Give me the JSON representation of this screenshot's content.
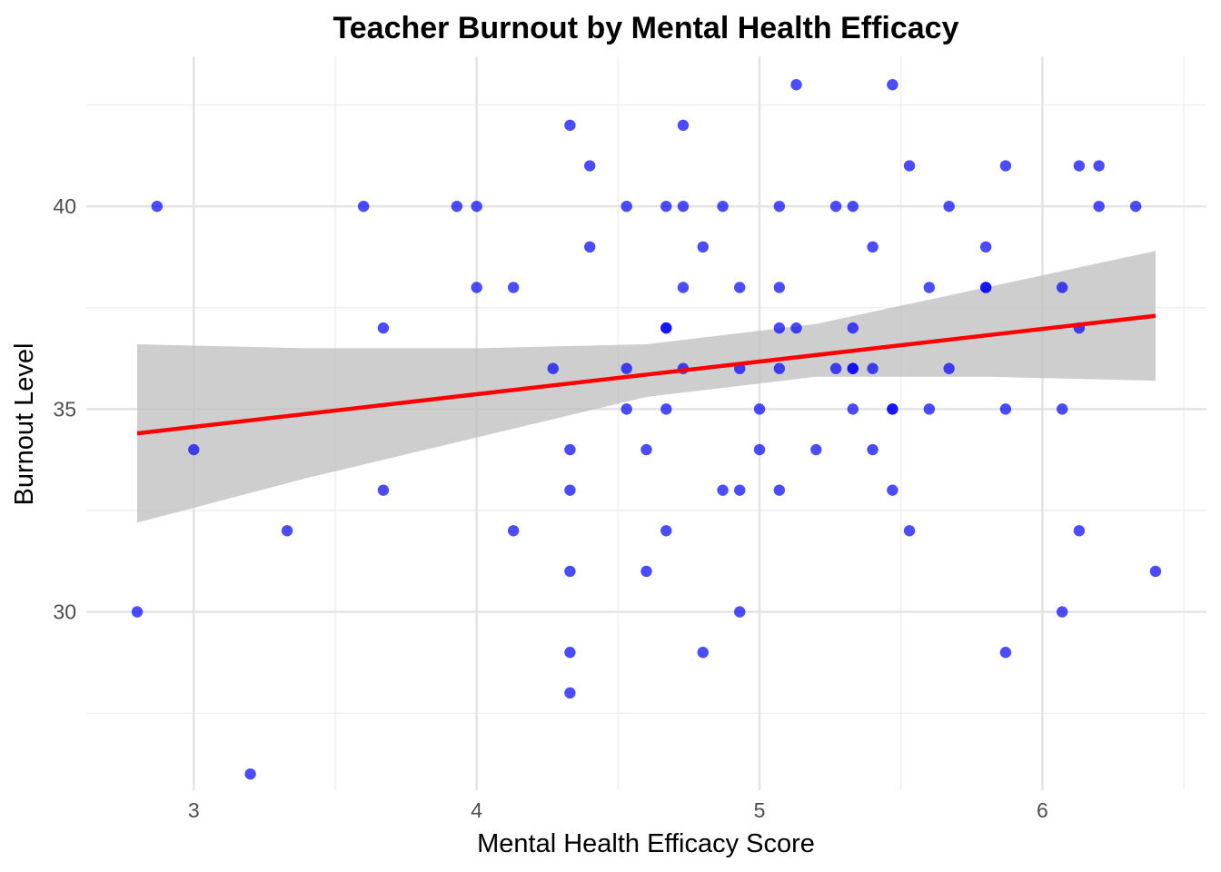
{
  "chart_data": {
    "type": "scatter",
    "title": "Teacher Burnout by Mental Health Efficacy",
    "xlabel": "Mental Health Efficacy Score",
    "ylabel": "Burnout Level",
    "xlim": [
      2.62,
      6.58
    ],
    "ylim": [
      25.6,
      43.7
    ],
    "x_ticks": [
      3,
      4,
      5,
      6
    ],
    "x_tick_labels": [
      "3",
      "4",
      "5",
      "6"
    ],
    "x_minor_ticks": [
      3.5,
      4.5,
      5.5,
      6.5
    ],
    "y_ticks": [
      30,
      35,
      40
    ],
    "y_tick_labels": [
      "30",
      "35",
      "40"
    ],
    "y_minor_ticks": [
      27.5,
      32.5,
      37.5,
      42.5
    ],
    "grid": true,
    "legend": "none",
    "point_color": "#0000ff",
    "point_opacity": 0.7,
    "trend_color": "#ff0000",
    "band_color": "#bebebe",
    "trend": {
      "method": "linear",
      "x": [
        2.8,
        6.4
      ],
      "y": [
        34.4,
        37.3
      ]
    },
    "confidence_band": {
      "x": [
        2.8,
        3.4,
        4.0,
        4.6,
        5.2,
        5.8,
        6.4
      ],
      "lower": [
        32.2,
        33.3,
        34.3,
        35.3,
        35.8,
        35.8,
        35.7
      ],
      "upper": [
        36.6,
        36.5,
        36.5,
        36.6,
        37.1,
        38.0,
        38.9
      ]
    },
    "points": [
      {
        "x": 2.8,
        "y": 30
      },
      {
        "x": 2.87,
        "y": 40
      },
      {
        "x": 3.0,
        "y": 34
      },
      {
        "x": 3.2,
        "y": 26
      },
      {
        "x": 3.33,
        "y": 32
      },
      {
        "x": 3.6,
        "y": 40
      },
      {
        "x": 3.67,
        "y": 37
      },
      {
        "x": 3.67,
        "y": 33
      },
      {
        "x": 3.93,
        "y": 40
      },
      {
        "x": 4.0,
        "y": 40
      },
      {
        "x": 4.0,
        "y": 38
      },
      {
        "x": 4.13,
        "y": 38
      },
      {
        "x": 4.13,
        "y": 32
      },
      {
        "x": 4.27,
        "y": 36
      },
      {
        "x": 4.33,
        "y": 42
      },
      {
        "x": 4.33,
        "y": 34
      },
      {
        "x": 4.33,
        "y": 33
      },
      {
        "x": 4.33,
        "y": 31
      },
      {
        "x": 4.33,
        "y": 29
      },
      {
        "x": 4.33,
        "y": 28
      },
      {
        "x": 4.4,
        "y": 41
      },
      {
        "x": 4.4,
        "y": 39
      },
      {
        "x": 4.53,
        "y": 40
      },
      {
        "x": 4.53,
        "y": 36
      },
      {
        "x": 4.53,
        "y": 35
      },
      {
        "x": 4.6,
        "y": 34
      },
      {
        "x": 4.6,
        "y": 31
      },
      {
        "x": 4.67,
        "y": 40
      },
      {
        "x": 4.67,
        "y": 37
      },
      {
        "x": 4.67,
        "y": 37
      },
      {
        "x": 4.67,
        "y": 35
      },
      {
        "x": 4.67,
        "y": 32
      },
      {
        "x": 4.73,
        "y": 42
      },
      {
        "x": 4.73,
        "y": 40
      },
      {
        "x": 4.73,
        "y": 38
      },
      {
        "x": 4.73,
        "y": 36
      },
      {
        "x": 4.8,
        "y": 39
      },
      {
        "x": 4.8,
        "y": 29
      },
      {
        "x": 4.87,
        "y": 40
      },
      {
        "x": 4.87,
        "y": 33
      },
      {
        "x": 4.93,
        "y": 38
      },
      {
        "x": 4.93,
        "y": 36
      },
      {
        "x": 4.93,
        "y": 33
      },
      {
        "x": 4.93,
        "y": 30
      },
      {
        "x": 5.0,
        "y": 35
      },
      {
        "x": 5.0,
        "y": 34
      },
      {
        "x": 5.07,
        "y": 40
      },
      {
        "x": 5.07,
        "y": 38
      },
      {
        "x": 5.07,
        "y": 37
      },
      {
        "x": 5.07,
        "y": 36
      },
      {
        "x": 5.07,
        "y": 33
      },
      {
        "x": 5.13,
        "y": 43
      },
      {
        "x": 5.13,
        "y": 37
      },
      {
        "x": 5.2,
        "y": 34
      },
      {
        "x": 5.27,
        "y": 40
      },
      {
        "x": 5.27,
        "y": 36
      },
      {
        "x": 5.33,
        "y": 40
      },
      {
        "x": 5.33,
        "y": 37
      },
      {
        "x": 5.33,
        "y": 36
      },
      {
        "x": 5.33,
        "y": 36
      },
      {
        "x": 5.33,
        "y": 35
      },
      {
        "x": 5.4,
        "y": 39
      },
      {
        "x": 5.4,
        "y": 36
      },
      {
        "x": 5.4,
        "y": 34
      },
      {
        "x": 5.47,
        "y": 43
      },
      {
        "x": 5.47,
        "y": 35
      },
      {
        "x": 5.47,
        "y": 35
      },
      {
        "x": 5.47,
        "y": 33
      },
      {
        "x": 5.53,
        "y": 41
      },
      {
        "x": 5.53,
        "y": 32
      },
      {
        "x": 5.6,
        "y": 38
      },
      {
        "x": 5.6,
        "y": 35
      },
      {
        "x": 5.67,
        "y": 40
      },
      {
        "x": 5.67,
        "y": 36
      },
      {
        "x": 5.8,
        "y": 39
      },
      {
        "x": 5.8,
        "y": 38
      },
      {
        "x": 5.8,
        "y": 38
      },
      {
        "x": 5.87,
        "y": 41
      },
      {
        "x": 5.87,
        "y": 35
      },
      {
        "x": 5.87,
        "y": 29
      },
      {
        "x": 6.07,
        "y": 38
      },
      {
        "x": 6.07,
        "y": 35
      },
      {
        "x": 6.07,
        "y": 30
      },
      {
        "x": 6.13,
        "y": 41
      },
      {
        "x": 6.13,
        "y": 37
      },
      {
        "x": 6.13,
        "y": 32
      },
      {
        "x": 6.2,
        "y": 41
      },
      {
        "x": 6.2,
        "y": 40
      },
      {
        "x": 6.33,
        "y": 40
      },
      {
        "x": 6.4,
        "y": 31
      }
    ]
  }
}
